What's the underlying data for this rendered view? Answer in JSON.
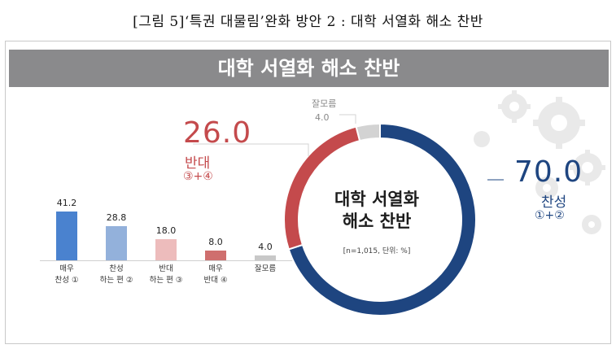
{
  "caption": "[그림 5]‘특권 대물림’완화 방안 2 : 대학 서열화 해소 찬반",
  "banner_title": "대학 서열화 해소 찬반",
  "colors": {
    "agree": "#1e4580",
    "oppose": "#c44a4c",
    "unsure": "#d3d3d3",
    "strong_agree_bar": "#4a82cf",
    "agree_bar": "#93b1db",
    "oppose_bar": "#edbcbc",
    "strong_oppose_bar": "#cf6f6e",
    "unsure_bar": "#c8c8c8"
  },
  "chart_data": [
    {
      "type": "bar",
      "categories": [
        "매우\n찬성 ①",
        "찬성\n하는 편 ②",
        "반대\n하는 편 ③",
        "매우\n반대 ④",
        "잘모름"
      ],
      "values": [
        41.2,
        28.8,
        18.0,
        8.0,
        4.0
      ],
      "value_labels": [
        "41.2",
        "28.8",
        "18.0",
        "8.0",
        "4.0"
      ],
      "ylim": [
        0,
        45
      ],
      "unit": "%"
    },
    {
      "type": "pie",
      "title": "대학 서열화 해소 찬반",
      "note": "[n=1,015, 단위: %]",
      "slices": [
        {
          "name": "찬성",
          "sub": "①+②",
          "value": 70.0,
          "label": "70.0"
        },
        {
          "name": "반대",
          "sub": "③+④",
          "value": 26.0,
          "label": "26.0"
        },
        {
          "name": "잘모름",
          "sub": "",
          "value": 4.0,
          "label": "4.0"
        }
      ]
    }
  ],
  "center": {
    "line1": "대학 서열화",
    "line2": "해소 찬반"
  }
}
